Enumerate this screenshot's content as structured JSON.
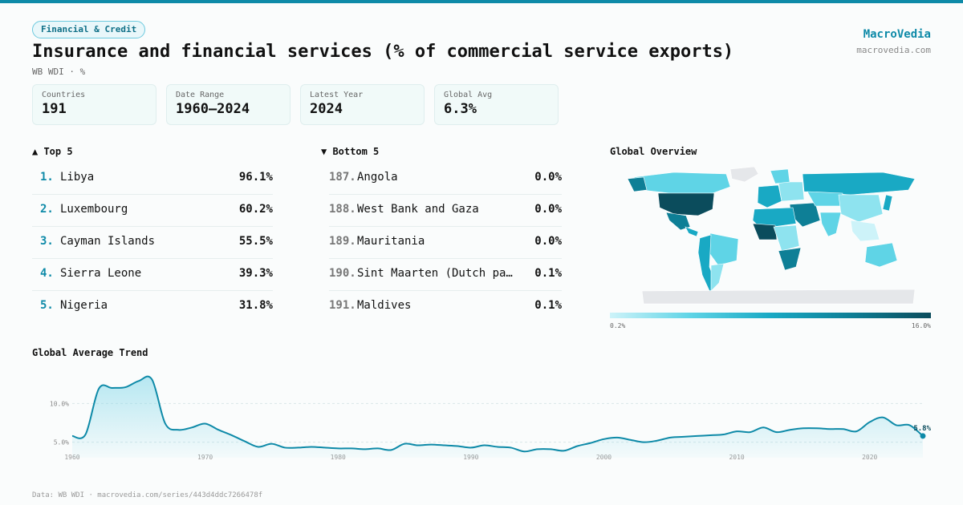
{
  "header": {
    "category": "Financial & Credit",
    "title": "Insurance and financial services (% of commercial service exports)",
    "subtitle": "WB WDI · %",
    "brand_name": "MacroVedia",
    "brand_url": "macrovedia.com"
  },
  "stats": [
    {
      "label": "Countries",
      "value": "191"
    },
    {
      "label": "Date Range",
      "value": "1960–2024"
    },
    {
      "label": "Latest Year",
      "value": "2024"
    },
    {
      "label": "Global Avg",
      "value": "6.3%"
    }
  ],
  "top5": {
    "heading": "▲ Top 5",
    "items": [
      {
        "rank": "1.",
        "name": "Libya",
        "value": "96.1%"
      },
      {
        "rank": "2.",
        "name": "Luxembourg",
        "value": "60.2%"
      },
      {
        "rank": "3.",
        "name": "Cayman Islands",
        "value": "55.5%"
      },
      {
        "rank": "4.",
        "name": "Sierra Leone",
        "value": "39.3%"
      },
      {
        "rank": "5.",
        "name": "Nigeria",
        "value": "31.8%"
      }
    ]
  },
  "bottom5": {
    "heading": "▼ Bottom 5",
    "items": [
      {
        "rank": "187.",
        "name": "Angola",
        "value": "0.0%"
      },
      {
        "rank": "188.",
        "name": "West Bank and Gaza",
        "value": "0.0%"
      },
      {
        "rank": "189.",
        "name": "Mauritania",
        "value": "0.0%"
      },
      {
        "rank": "190.",
        "name": "Sint Maarten (Dutch pa…",
        "value": "0.1%"
      },
      {
        "rank": "191.",
        "name": "Maldives",
        "value": "0.1%"
      }
    ]
  },
  "map": {
    "heading": "Global Overview",
    "legend_min": "0.2%",
    "legend_max": "16.0%",
    "colors": {
      "low": "#cdf3f9",
      "mid": "#19a9c4",
      "high": "#0b4c5c",
      "no_data": "#e5e7ea"
    }
  },
  "trend": {
    "heading": "Global Average Trend"
  },
  "chart_data": {
    "type": "area",
    "title": "Global Average Trend",
    "xlabel": "",
    "ylabel": "",
    "x": [
      1960,
      1961,
      1962,
      1963,
      1964,
      1965,
      1966,
      1967,
      1968,
      1969,
      1970,
      1971,
      1972,
      1973,
      1974,
      1975,
      1976,
      1977,
      1978,
      1979,
      1980,
      1981,
      1982,
      1983,
      1984,
      1985,
      1986,
      1987,
      1988,
      1989,
      1990,
      1991,
      1992,
      1993,
      1994,
      1995,
      1996,
      1997,
      1998,
      1999,
      2000,
      2001,
      2002,
      2003,
      2004,
      2005,
      2006,
      2007,
      2008,
      2009,
      2010,
      2011,
      2012,
      2013,
      2014,
      2015,
      2016,
      2017,
      2018,
      2019,
      2020,
      2021,
      2022,
      2023,
      2024
    ],
    "y": [
      5.8,
      6.0,
      11.9,
      12.0,
      12.1,
      12.9,
      13.1,
      7.4,
      6.6,
      6.9,
      7.4,
      6.6,
      5.9,
      5.1,
      4.4,
      4.8,
      4.3,
      4.3,
      4.4,
      4.3,
      4.2,
      4.2,
      4.1,
      4.2,
      4.0,
      4.8,
      4.6,
      4.7,
      4.6,
      4.5,
      4.3,
      4.6,
      4.4,
      4.3,
      3.8,
      4.1,
      4.1,
      3.9,
      4.5,
      4.9,
      5.4,
      5.6,
      5.3,
      5.0,
      5.2,
      5.6,
      5.7,
      5.8,
      5.9,
      6.0,
      6.4,
      6.3,
      6.9,
      6.3,
      6.6,
      6.8,
      6.8,
      6.7,
      6.7,
      6.4,
      7.6,
      8.2,
      7.2,
      7.2,
      5.8
    ],
    "ylim": [
      3,
      15
    ],
    "yticks": [
      5,
      10
    ],
    "ytick_labels": [
      "5.0%",
      "10.0%"
    ],
    "xticks": [
      1960,
      1970,
      1980,
      1990,
      2000,
      2010,
      2020
    ],
    "last_label": "5.8%",
    "color": "#0e8aa8",
    "grid": true
  },
  "footer": "Data: WB WDI · macrovedia.com/series/443d4ddc7266478f"
}
